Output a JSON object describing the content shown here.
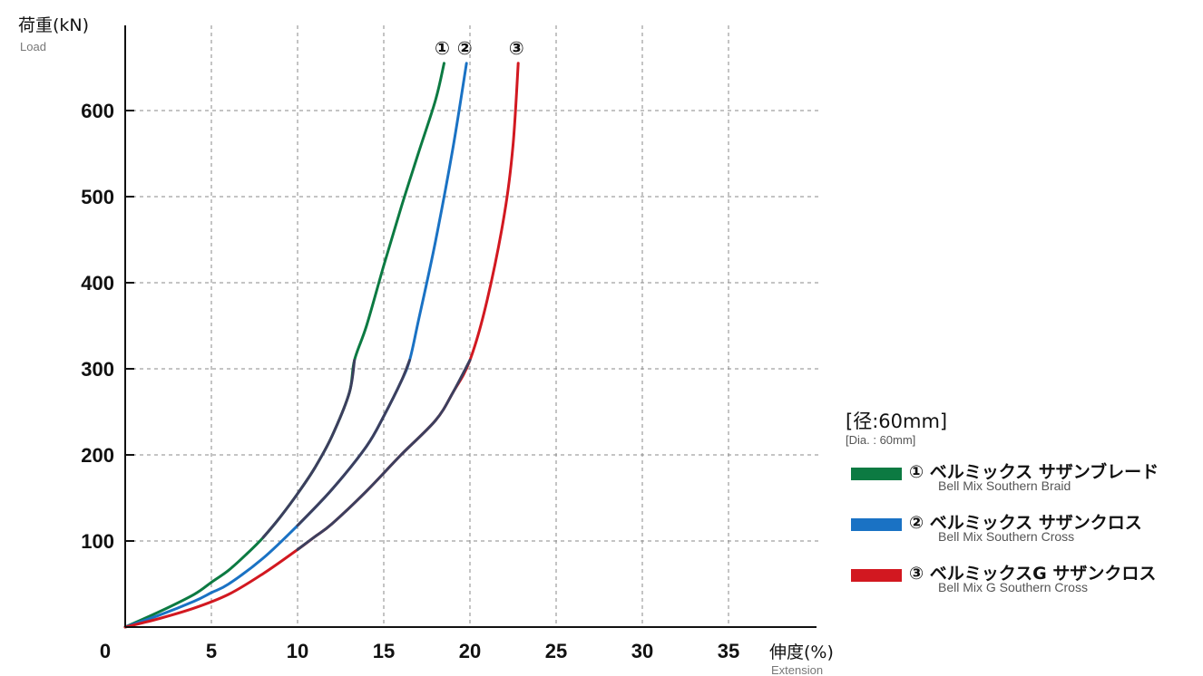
{
  "chart_data": {
    "type": "line",
    "ylabel": "荷重(kN)",
    "ylabel_sub": "Load",
    "xlabel": "伸度(%)",
    "xlabel_sub": "Extension",
    "x_ticks": [
      "5",
      "10",
      "15",
      "20",
      "25",
      "30",
      "35"
    ],
    "y_ticks": [
      "100",
      "200",
      "300",
      "400",
      "500",
      "600"
    ],
    "origin_label": "0",
    "xlim": [
      0,
      40
    ],
    "ylim": [
      0,
      700
    ],
    "grid": true,
    "legend_position": "bottom-right",
    "annotation_color": "#3c3f5e",
    "series": [
      {
        "name": "① ベルミックス サザンブレード",
        "name_en": "Bell Mix Southern Braid",
        "marker": "①",
        "color": "#0c7a42",
        "x": [
          0,
          2,
          4,
          5,
          6,
          7,
          8,
          9,
          10,
          11,
          12,
          13,
          13.3,
          14,
          15,
          16,
          17,
          18,
          18.5
        ],
        "y": [
          0,
          18,
          38,
          52,
          66,
          84,
          104,
          128,
          155,
          185,
          222,
          272,
          310,
          350,
          420,
          487,
          550,
          612,
          655
        ]
      },
      {
        "name": "② ベルミックス サザンクロス",
        "name_en": "Bell Mix Southern Cross",
        "marker": "②",
        "color": "#1a72c4",
        "x": [
          0,
          2,
          4,
          5,
          6,
          8,
          10,
          12,
          14,
          15,
          16,
          16.5,
          17,
          18,
          19,
          19.8
        ],
        "y": [
          0,
          14,
          30,
          40,
          50,
          80,
          118,
          160,
          210,
          245,
          285,
          310,
          355,
          448,
          555,
          655
        ]
      },
      {
        "name": "③ ベルミックスG サザンクロス",
        "name_en": "Bell Mix G Southern Cross",
        "marker": "③",
        "color": "#d21820",
        "x": [
          0,
          2,
          4,
          6,
          8,
          10,
          11,
          12,
          14,
          16,
          18,
          19,
          20,
          21,
          22,
          22.5,
          22.8
        ],
        "y": [
          0,
          10,
          22,
          38,
          62,
          90,
          105,
          120,
          158,
          200,
          240,
          272,
          310,
          380,
          480,
          560,
          655
        ]
      }
    ]
  },
  "legend": {
    "title": "[径:60mm]",
    "title_sub": "[Dia. : 60mm]"
  }
}
